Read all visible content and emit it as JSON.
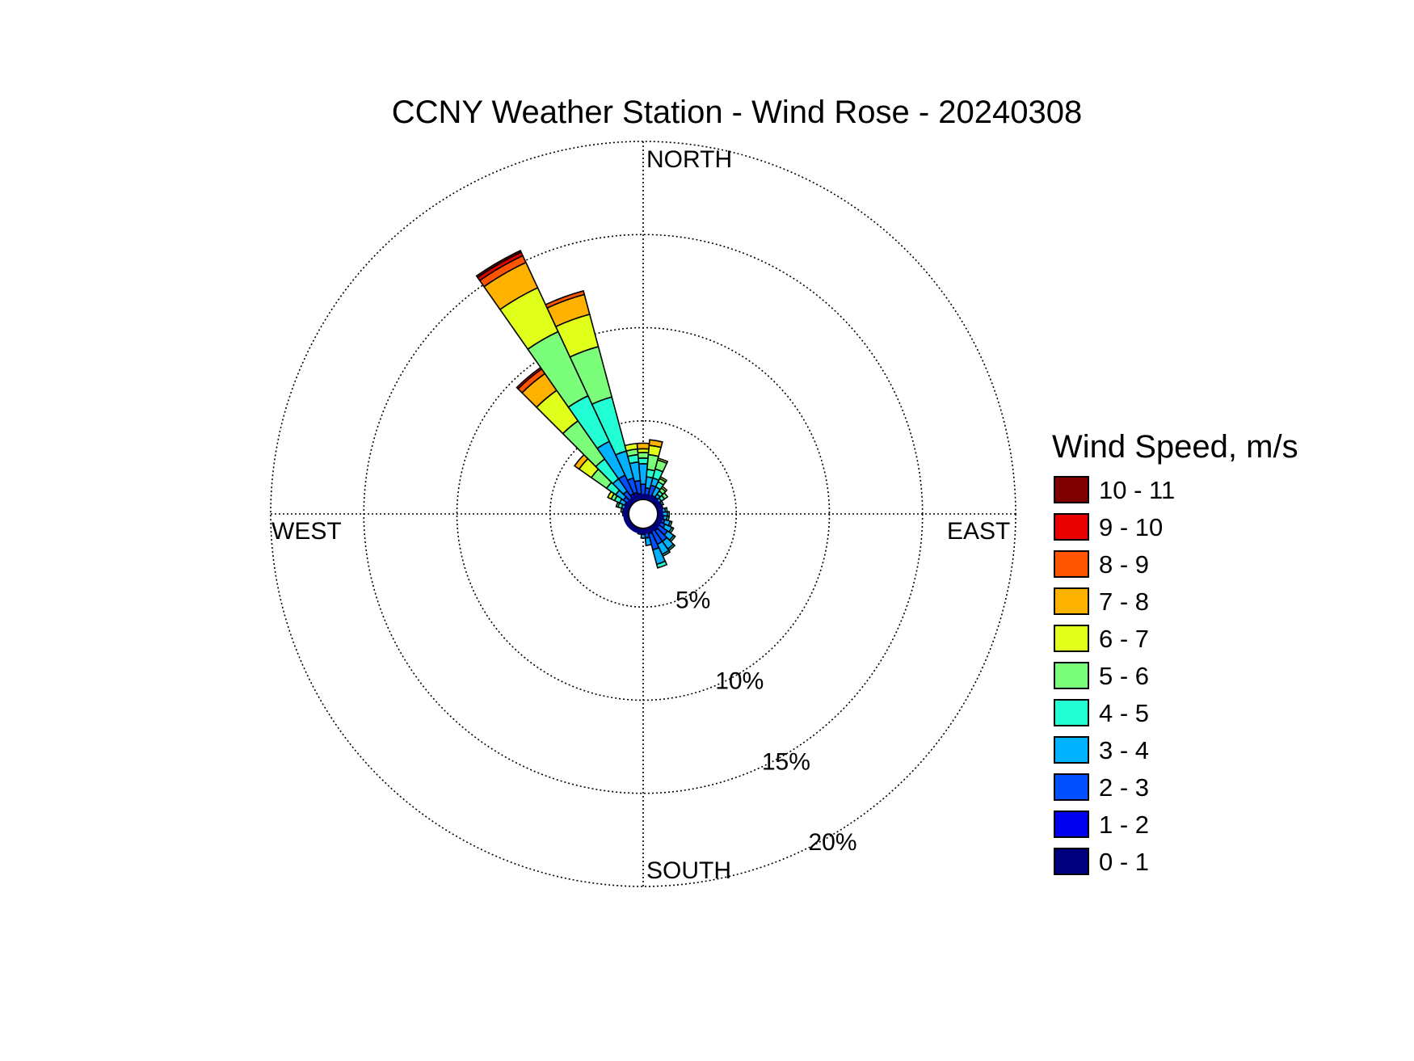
{
  "chart_data": {
    "type": "polar-bar",
    "title": "CCNY Weather Station - Wind Rose - 20240308",
    "direction_labels": {
      "north": "NORTH",
      "south": "SOUTH",
      "east": "EAST",
      "west": "WEST"
    },
    "rings": [
      {
        "value": 5,
        "label": "5%"
      },
      {
        "value": 10,
        "label": "10%"
      },
      {
        "value": 15,
        "label": "15%"
      },
      {
        "value": 20,
        "label": "20%"
      }
    ],
    "radial_max": 20,
    "legend_title": "Wind Speed, m/s",
    "speed_bins": [
      {
        "label": "0 - 1",
        "color": "#00007f"
      },
      {
        "label": "1 - 2",
        "color": "#0000ee"
      },
      {
        "label": "2 - 3",
        "color": "#0050ff"
      },
      {
        "label": "3 - 4",
        "color": "#00b2ff"
      },
      {
        "label": "4 - 5",
        "color": "#22ffd4"
      },
      {
        "label": "5 - 6",
        "color": "#7bff7b"
      },
      {
        "label": "6 - 7",
        "color": "#e0ff1a"
      },
      {
        "label": "7 - 8",
        "color": "#ffb100"
      },
      {
        "label": "8 - 9",
        "color": "#ff5500"
      },
      {
        "label": "9 - 10",
        "color": "#e60000"
      },
      {
        "label": "10 - 11",
        "color": "#7f0000"
      }
    ],
    "direction_bin_width_deg": 10,
    "calm_fraction_percent": 0.6,
    "directions_deg": [
      0,
      10,
      20,
      30,
      40,
      50,
      60,
      70,
      80,
      90,
      100,
      110,
      120,
      130,
      140,
      150,
      160,
      170,
      180,
      190,
      200,
      210,
      220,
      230,
      240,
      250,
      260,
      270,
      280,
      290,
      300,
      310,
      320,
      330,
      340,
      350
    ],
    "cumulative_percent": [
      [
        0.6,
        1.0,
        1.6,
        2.7,
        3.0,
        3.3,
        3.5,
        3.8,
        3.8,
        3.8,
        3.8
      ],
      [
        0.6,
        1.0,
        1.4,
        2.0,
        2.4,
        3.2,
        3.7,
        4.0,
        4.0,
        4.0,
        4.0
      ],
      [
        0.6,
        1.0,
        1.6,
        2.0,
        2.5,
        3.0,
        3.1,
        3.1,
        3.1,
        3.1,
        3.1
      ],
      [
        0.6,
        0.9,
        1.1,
        1.6,
        1.9,
        2.1,
        2.2,
        2.2,
        2.2,
        2.2,
        2.2
      ],
      [
        0.6,
        0.8,
        1.1,
        1.3,
        1.5,
        1.7,
        1.8,
        1.8,
        1.8,
        1.8,
        1.8
      ],
      [
        0.6,
        0.8,
        1.0,
        1.2,
        1.4,
        1.6,
        1.6,
        1.6,
        1.6,
        1.6,
        1.6
      ],
      [
        0.6,
        0.8,
        1.0,
        1.1,
        1.2,
        1.2,
        1.2,
        1.2,
        1.2,
        1.2,
        1.2
      ],
      [
        0.6,
        0.8,
        1.0,
        1.1,
        1.1,
        1.1,
        1.1,
        1.1,
        1.1,
        1.1,
        1.1
      ],
      [
        0.6,
        0.8,
        1.0,
        1.2,
        1.3,
        1.3,
        1.3,
        1.3,
        1.3,
        1.3,
        1.3
      ],
      [
        0.6,
        0.8,
        1.0,
        1.3,
        1.4,
        1.4,
        1.4,
        1.4,
        1.4,
        1.4,
        1.4
      ],
      [
        0.6,
        0.8,
        1.1,
        1.3,
        1.4,
        1.4,
        1.4,
        1.4,
        1.4,
        1.4,
        1.4
      ],
      [
        0.6,
        0.9,
        1.2,
        1.5,
        1.6,
        1.6,
        1.6,
        1.6,
        1.6,
        1.6,
        1.6
      ],
      [
        0.6,
        0.9,
        1.3,
        1.7,
        1.8,
        1.8,
        1.8,
        1.8,
        1.8,
        1.8,
        1.8
      ],
      [
        0.6,
        1.0,
        1.6,
        2.0,
        2.1,
        2.1,
        2.1,
        2.1,
        2.1,
        2.1,
        2.1
      ],
      [
        0.6,
        1.1,
        1.8,
        2.3,
        2.4,
        2.4,
        2.4,
        2.4,
        2.4,
        2.4,
        2.4
      ],
      [
        0.6,
        1.0,
        1.8,
        2.4,
        2.5,
        2.5,
        2.5,
        2.5,
        2.5,
        2.5,
        2.5
      ],
      [
        0.6,
        1.1,
        2.0,
        2.8,
        3.0,
        3.0,
        3.0,
        3.0,
        3.0,
        3.0,
        3.0
      ],
      [
        0.6,
        0.9,
        1.3,
        1.7,
        1.7,
        1.7,
        1.7,
        1.7,
        1.7,
        1.7,
        1.7
      ],
      [
        0.6,
        0.8,
        1.1,
        1.3,
        1.3,
        1.3,
        1.3,
        1.3,
        1.3,
        1.3,
        1.3
      ],
      [
        0.6,
        0.8,
        1.0,
        1.1,
        1.1,
        1.1,
        1.1,
        1.1,
        1.1,
        1.1,
        1.1
      ],
      [
        0.6,
        0.8,
        0.9,
        1.0,
        1.0,
        1.0,
        1.0,
        1.0,
        1.0,
        1.0,
        1.0
      ],
      [
        0.6,
        0.8,
        0.9,
        1.0,
        1.0,
        1.0,
        1.0,
        1.0,
        1.0,
        1.0,
        1.0
      ],
      [
        0.6,
        0.8,
        0.9,
        0.9,
        0.9,
        0.9,
        0.9,
        0.9,
        0.9,
        0.9,
        0.9
      ],
      [
        0.6,
        0.8,
        0.9,
        1.0,
        1.0,
        1.0,
        1.0,
        1.0,
        1.0,
        1.0,
        1.0
      ],
      [
        0.6,
        0.7,
        0.8,
        0.9,
        0.9,
        0.9,
        0.9,
        0.9,
        0.9,
        0.9,
        0.9
      ],
      [
        0.6,
        0.7,
        0.8,
        0.9,
        0.9,
        0.9,
        0.9,
        0.9,
        0.9,
        0.9,
        0.9
      ],
      [
        0.6,
        0.7,
        0.8,
        0.9,
        1.0,
        1.0,
        1.0,
        1.0,
        1.0,
        1.0,
        1.0
      ],
      [
        0.6,
        0.7,
        0.8,
        1.0,
        1.1,
        1.1,
        1.1,
        1.1,
        1.1,
        1.1,
        1.1
      ],
      [
        0.6,
        0.8,
        0.9,
        1.1,
        1.2,
        1.2,
        1.2,
        1.2,
        1.2,
        1.2,
        1.2
      ],
      [
        0.6,
        0.8,
        1.0,
        1.2,
        1.4,
        1.5,
        1.5,
        1.5,
        1.5,
        1.5,
        1.5
      ],
      [
        0.6,
        0.8,
        1.1,
        1.4,
        1.7,
        1.9,
        2.1,
        2.1,
        2.1,
        2.1,
        2.1
      ],
      [
        0.6,
        0.9,
        1.3,
        1.8,
        2.4,
        3.4,
        4.2,
        4.5,
        4.5,
        4.5,
        4.5
      ],
      [
        0.6,
        1.0,
        1.5,
        2.3,
        3.6,
        6.1,
        8.1,
        9.2,
        9.5,
        9.6,
        9.6
      ],
      [
        0.6,
        1.2,
        2.3,
        4.3,
        7.0,
        10.8,
        13.4,
        14.9,
        15.3,
        15.5,
        15.6
      ],
      [
        0.6,
        1.2,
        2.0,
        3.5,
        6.5,
        9.3,
        11.1,
        12.2,
        12.4,
        12.4,
        12.4
      ],
      [
        0.6,
        1.1,
        1.8,
        2.8,
        3.2,
        3.5,
        3.8,
        3.8,
        3.8,
        3.8,
        3.8
      ]
    ]
  }
}
